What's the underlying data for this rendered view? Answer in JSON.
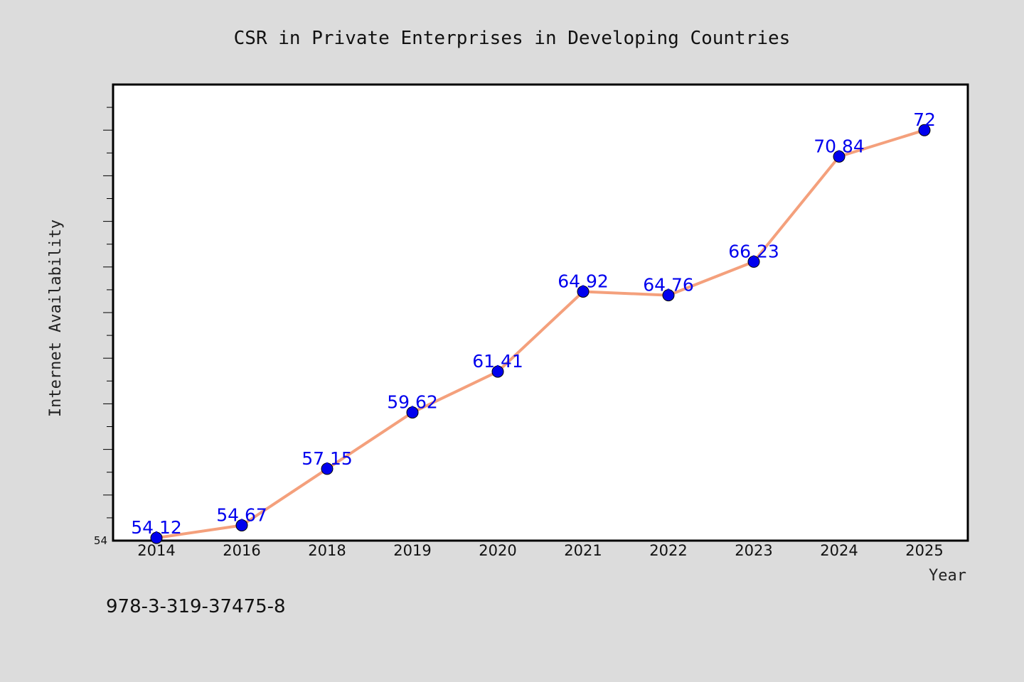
{
  "chart_data": {
    "type": "line",
    "title": "CSR in Private Enterprises in Developing Countries",
    "xlabel": "Year",
    "ylabel": "Internet Availability",
    "categories": [
      "2014",
      "2016",
      "2018",
      "2019",
      "2020",
      "2021",
      "2022",
      "2023",
      "2024",
      "2025"
    ],
    "series": [
      {
        "values": [
          54.12,
          54.67,
          57.15,
          59.62,
          61.41,
          64.92,
          64.76,
          66.23,
          70.84,
          72
        ]
      }
    ],
    "value_labels": [
      "54.12",
      "54.67",
      "57.15",
      "59.62",
      "61.41",
      "64.92",
      "64.76",
      "66.23",
      "70.84",
      "72"
    ],
    "ylim": [
      54,
      74
    ],
    "yticks_labeled": [
      "54"
    ],
    "grid": false,
    "line_color": "#f4a07c",
    "marker_color": "#0000ee",
    "plot_background": "#ffffff",
    "page_background": "#dcdcdc"
  },
  "footnote": "978-3-319-37475-8"
}
